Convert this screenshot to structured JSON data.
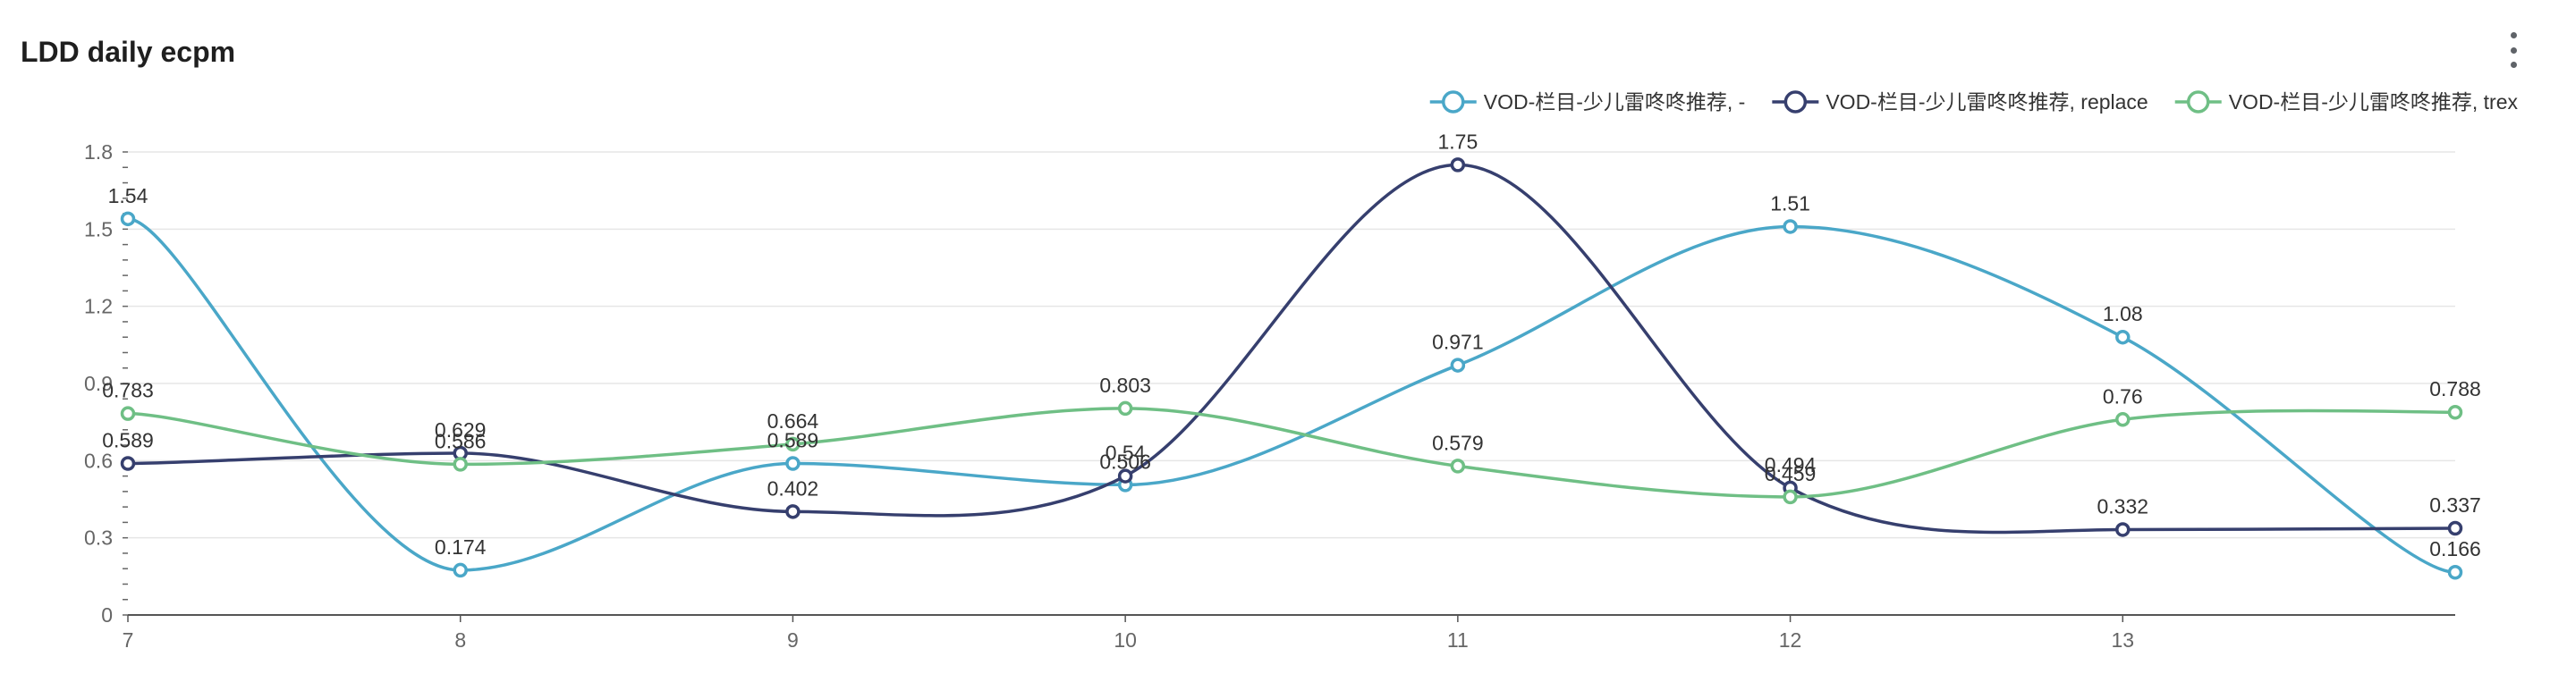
{
  "header": {
    "title": "LDD daily ecpm"
  },
  "menu": {
    "icon": "more-vertical-icon"
  },
  "chart_data": {
    "type": "line",
    "title": "LDD daily ecpm",
    "xlabel": "",
    "ylabel": "",
    "x": [
      7,
      8,
      9,
      10,
      11,
      12,
      13,
      14
    ],
    "x_tick_labels": [
      "7",
      "8",
      "9",
      "10",
      "11",
      "12",
      "13"
    ],
    "ylim": [
      0,
      1.8
    ],
    "y_ticks": [
      0,
      0.3,
      0.6,
      0.9,
      1.2,
      1.5,
      1.8
    ],
    "y_tick_labels": [
      "0",
      "0.3",
      "0.6",
      "0.9",
      "1.2",
      "1.5",
      "1.8"
    ],
    "grid": true,
    "smooth": true,
    "legend_position": "top-right",
    "series": [
      {
        "name": "VOD-栏目-少儿雷咚咚推荐, -",
        "color": "#4aa7c8",
        "values": [
          1.54,
          0.174,
          0.589,
          0.506,
          0.971,
          1.51,
          1.08,
          0.166
        ],
        "labels": [
          "1.54",
          "0.174",
          "0.589",
          "0.506",
          "0.971",
          "1.51",
          "1.08",
          "0.166"
        ]
      },
      {
        "name": "VOD-栏目-少儿雷咚咚推荐, replace",
        "color": "#363f6e",
        "values": [
          0.589,
          0.629,
          0.402,
          0.54,
          1.75,
          0.494,
          0.332,
          0.337
        ],
        "labels": [
          "0.589",
          "0.629",
          "0.402",
          "0.54",
          "1.75",
          "0.494",
          "0.332",
          "0.337"
        ]
      },
      {
        "name": "VOD-栏目-少儿雷咚咚推荐, trex",
        "color": "#6fbf85",
        "values": [
          0.783,
          0.586,
          0.664,
          0.803,
          0.579,
          0.459,
          0.76,
          0.788
        ],
        "labels": [
          "0.783",
          "0.586",
          "0.664",
          "0.803",
          "0.579",
          "0.459",
          "0.76",
          "0.788"
        ]
      }
    ]
  }
}
